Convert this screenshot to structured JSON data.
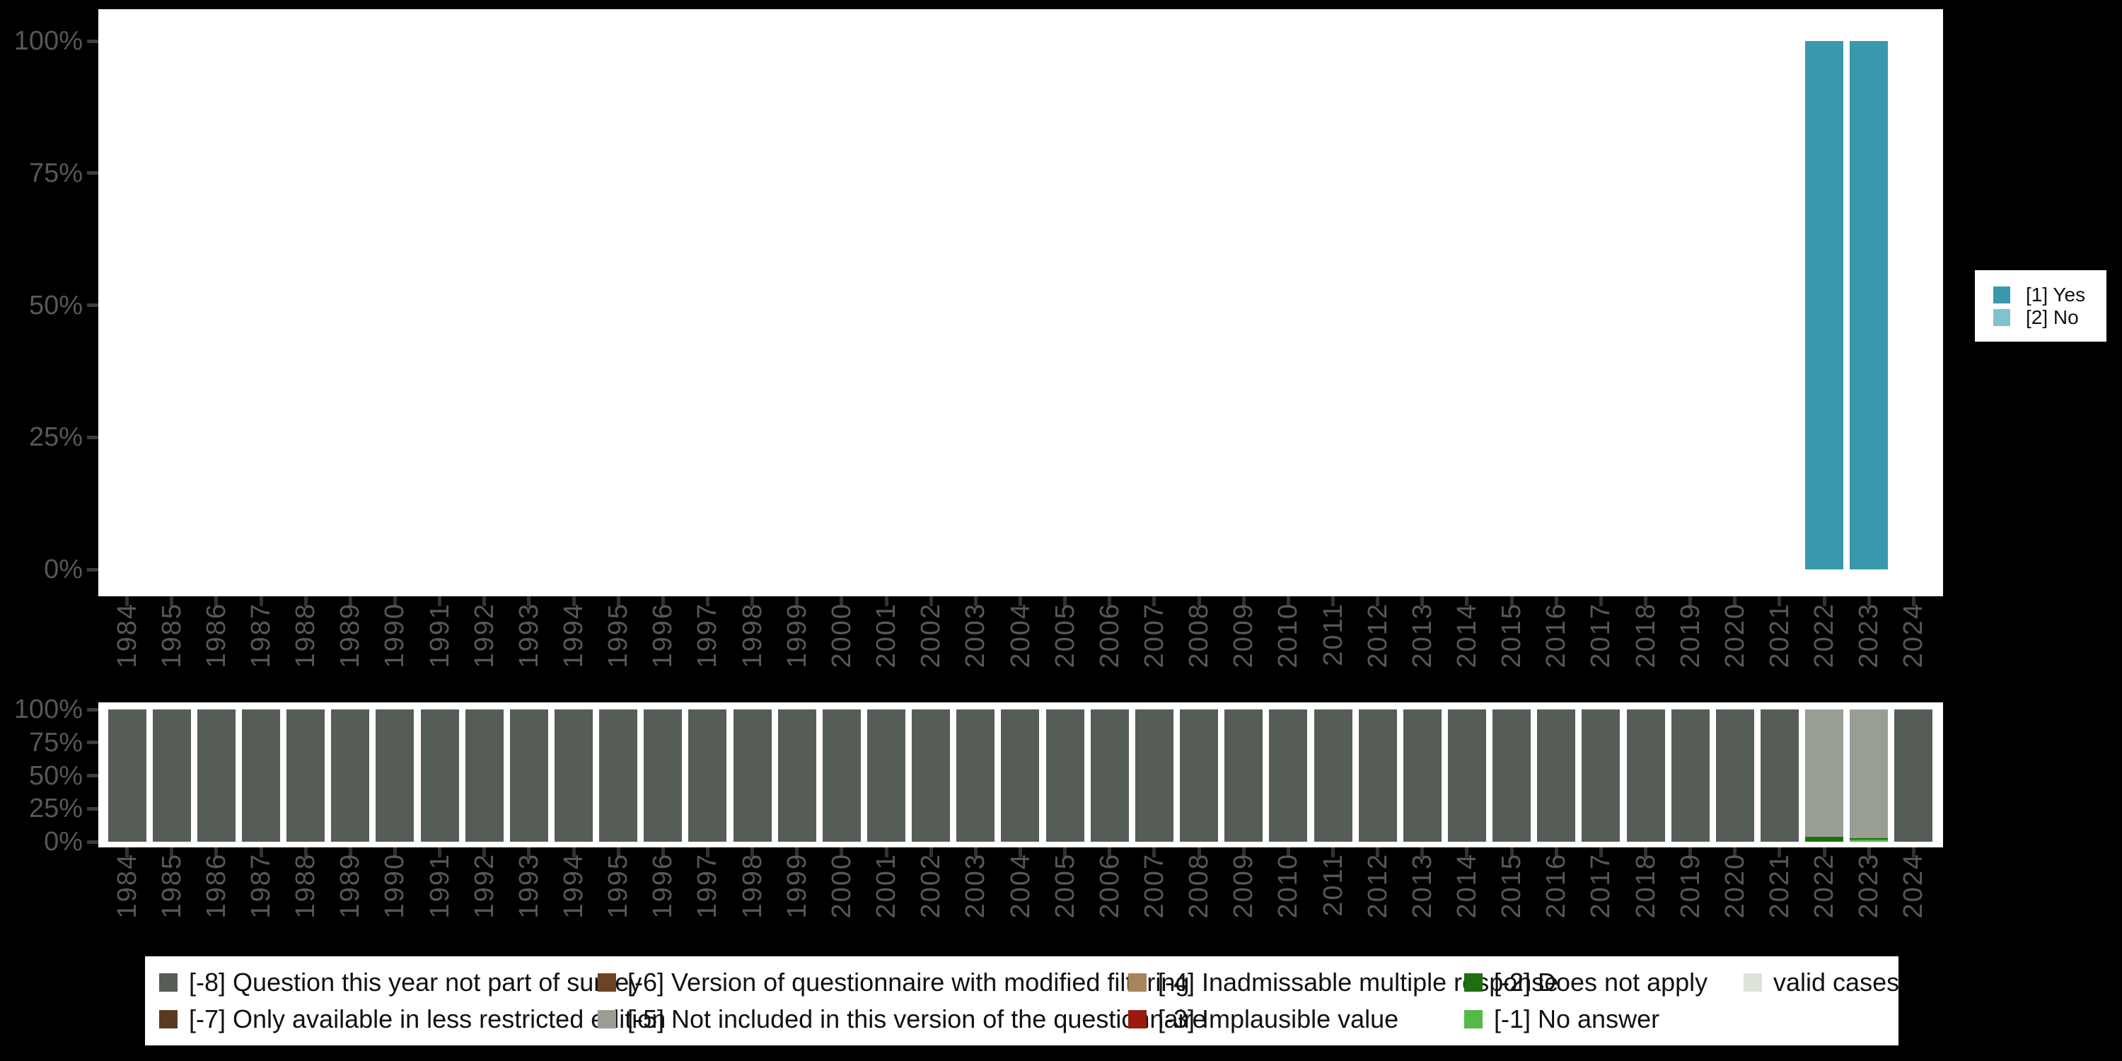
{
  "background_color": "#000000",
  "panel_color": "#ffffff",
  "years": [
    "1984",
    "1985",
    "1986",
    "1987",
    "1988",
    "1989",
    "1990",
    "1991",
    "1992",
    "1993",
    "1994",
    "1995",
    "1996",
    "1997",
    "1998",
    "1999",
    "2000",
    "2001",
    "2002",
    "2003",
    "2004",
    "2005",
    "2006",
    "2007",
    "2008",
    "2009",
    "2010",
    "2011",
    "2012",
    "2013",
    "2014",
    "2015",
    "2016",
    "2017",
    "2018",
    "2019",
    "2020",
    "2021",
    "2022",
    "2023",
    "2024"
  ],
  "axis": {
    "ytick_labels": [
      "100%",
      "75%",
      "50%",
      "25%",
      "0%"
    ],
    "label_color": "#575757",
    "tick_color": "#3d3d3d"
  },
  "right_legend": {
    "items": [
      {
        "label": "[1] Yes",
        "color": "#3a98ac"
      },
      {
        "label": "[2] No",
        "color": "#7fc3d1"
      }
    ]
  },
  "bottom_legend": {
    "columns": [
      {
        "items": [
          {
            "label": "[-8] Question this year not part of survey",
            "color": "#565d56"
          },
          {
            "label": "[-7] Only available in less restricted edition",
            "color": "#5b3a24"
          }
        ]
      },
      {
        "items": [
          {
            "label": "[-6] Version of questionnaire with modified filtering",
            "color": "#6b4423"
          },
          {
            "label": "[-5] Not included in this version of the questionnaire",
            "color": "#999e95"
          }
        ]
      },
      {
        "items": [
          {
            "label": "[-4] Inadmissable multiple response",
            "color": "#a8845c"
          },
          {
            "label": "[-3] Implausible value",
            "color": "#9b1a10"
          }
        ]
      },
      {
        "items": [
          {
            "label": "[-2] Does not apply",
            "color": "#1d6f10"
          },
          {
            "label": "[-1] No answer",
            "color": "#55b948"
          }
        ]
      },
      {
        "items": [
          {
            "label": "valid cases",
            "color": "#dee3da"
          }
        ]
      }
    ]
  },
  "chart_data": [
    {
      "type": "bar",
      "stacked": true,
      "title": "",
      "xlabel": "",
      "ylabel": "",
      "ylim": [
        0,
        100
      ],
      "yticks": [
        0,
        25,
        50,
        75,
        100
      ],
      "grid": false,
      "legend_position": "right",
      "categories_ref": "years",
      "series": [
        {
          "name": "[1] Yes",
          "color": "#3a98ac",
          "values_by_year": {
            "default": 0,
            "2022": 100,
            "2023": 100
          }
        },
        {
          "name": "[2] No",
          "color": "#7fc3d1",
          "values_by_year": {
            "default": 0
          }
        }
      ]
    },
    {
      "type": "bar",
      "stacked": true,
      "title": "",
      "xlabel": "",
      "ylabel": "",
      "ylim": [
        0,
        100
      ],
      "yticks": [
        0,
        25,
        50,
        75,
        100
      ],
      "grid": false,
      "legend_position": "bottom",
      "categories_ref": "years",
      "series": [
        {
          "name": "[-8] Question this year not part of survey",
          "color": "#565d56",
          "values_by_year": {
            "default": 100,
            "2022": 0,
            "2023": 0
          }
        },
        {
          "name": "[-7] Only available in less restricted edition",
          "color": "#5b3a24",
          "values_by_year": {
            "default": 0
          }
        },
        {
          "name": "[-6] Version of questionnaire with modified filtering",
          "color": "#6b4423",
          "values_by_year": {
            "default": 0
          }
        },
        {
          "name": "[-5] Not included in this version of the questionnaire",
          "color": "#999e95",
          "values_by_year": {
            "default": 0,
            "2022": 96,
            "2023": 97.5
          }
        },
        {
          "name": "[-4] Inadmissable multiple response",
          "color": "#a8845c",
          "values_by_year": {
            "default": 0
          }
        },
        {
          "name": "[-3] Implausible value",
          "color": "#9b1a10",
          "values_by_year": {
            "default": 0
          }
        },
        {
          "name": "[-2] Does not apply",
          "color": "#1d6f10",
          "values_by_year": {
            "default": 0,
            "2022": 4,
            "2023": 1
          }
        },
        {
          "name": "[-1] No answer",
          "color": "#55b948",
          "values_by_year": {
            "default": 0,
            "2023": 1.5
          }
        },
        {
          "name": "valid cases",
          "color": "#dee3da",
          "values_by_year": {
            "default": 0
          }
        }
      ]
    }
  ]
}
